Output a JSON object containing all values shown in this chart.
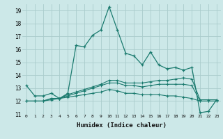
{
  "xlabel": "Humidex (Indice chaleur)",
  "ylabel": "",
  "background_color": "#cce8e8",
  "grid_color": "#aacccc",
  "line_color": "#1a7a6e",
  "xlim": [
    -0.5,
    23.5
  ],
  "ylim": [
    11,
    19.5
  ],
  "xticks": [
    0,
    1,
    2,
    3,
    4,
    5,
    6,
    7,
    8,
    9,
    10,
    11,
    12,
    13,
    14,
    15,
    16,
    17,
    18,
    19,
    20,
    21,
    22,
    23
  ],
  "yticks": [
    11,
    12,
    13,
    14,
    15,
    16,
    17,
    18,
    19
  ],
  "series1": [
    13.2,
    12.4,
    12.4,
    12.6,
    12.2,
    12.6,
    16.3,
    16.2,
    17.1,
    17.5,
    19.3,
    17.5,
    15.7,
    15.5,
    14.8,
    15.8,
    14.8,
    14.5,
    14.6,
    14.4,
    14.6,
    11.1,
    11.2,
    12.1
  ],
  "series2": [
    12.0,
    12.0,
    12.0,
    12.2,
    12.2,
    12.5,
    12.7,
    12.9,
    13.1,
    13.3,
    13.6,
    13.6,
    13.4,
    13.4,
    13.4,
    13.5,
    13.6,
    13.6,
    13.7,
    13.8,
    13.7,
    12.1,
    12.1,
    12.1
  ],
  "series3": [
    12.0,
    12.0,
    12.0,
    12.2,
    12.2,
    12.4,
    12.6,
    12.8,
    13.0,
    13.2,
    13.4,
    13.4,
    13.2,
    13.2,
    13.1,
    13.2,
    13.3,
    13.3,
    13.3,
    13.3,
    13.2,
    12.0,
    12.0,
    12.0
  ],
  "series4": [
    12.0,
    12.0,
    12.0,
    12.1,
    12.2,
    12.3,
    12.4,
    12.5,
    12.6,
    12.7,
    12.9,
    12.8,
    12.6,
    12.6,
    12.5,
    12.5,
    12.5,
    12.4,
    12.4,
    12.3,
    12.2,
    12.0,
    12.0,
    12.0
  ]
}
